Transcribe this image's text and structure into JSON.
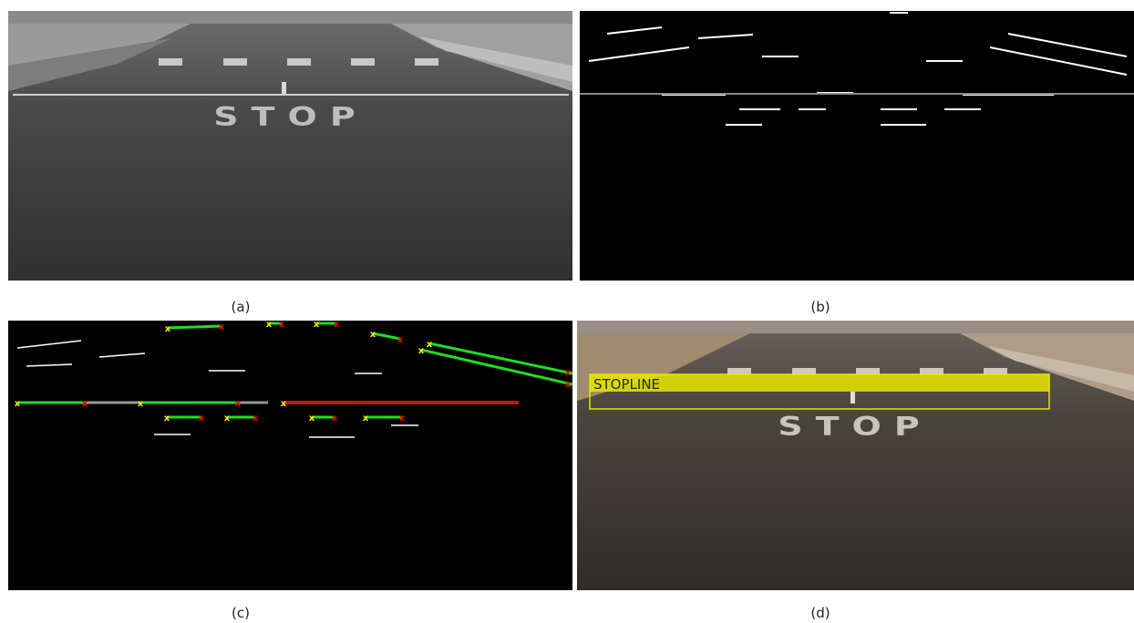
{
  "figure": {
    "panels": [
      {
        "id": "a",
        "caption": "(a)",
        "kind": "grayscale-road",
        "road_text": "STOP"
      },
      {
        "id": "b",
        "caption": "(b)",
        "kind": "binary-edge-map"
      },
      {
        "id": "c",
        "caption": "(c)",
        "kind": "detected-line-segments"
      },
      {
        "id": "d",
        "caption": "(d)",
        "kind": "color-road-detection",
        "road_text": "STOP",
        "detection_label": "STOPLINE"
      }
    ]
  },
  "colors": {
    "segment_green": "#22dd22",
    "segment_red": "#cc1111",
    "segment_gray": "#999999",
    "endpoint_yellow": "#ffee00",
    "endpoint_red": "#ee0000",
    "detection_box": "#e6e600"
  }
}
